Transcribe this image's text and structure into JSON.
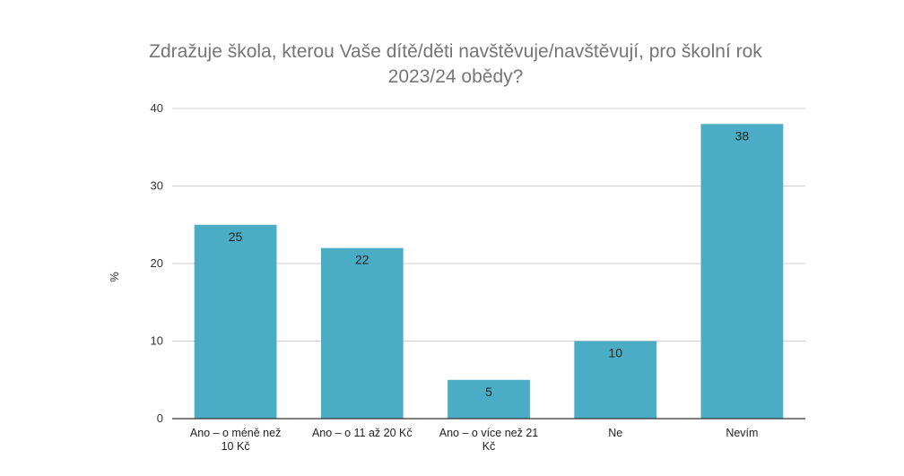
{
  "chart_data": {
    "type": "bar",
    "title_lines": [
      "Zdražuje škola, kterou Vaše dítě/děti navštěvuje/navštěvují, pro školní rok",
      "2023/24 obědy?"
    ],
    "ylabel": "%",
    "xlabel": "",
    "ylim": [
      0,
      40
    ],
    "yticks": [
      "0",
      "10",
      "20",
      "30",
      "40"
    ],
    "grid": true,
    "bar_color": "#4BACC6",
    "categories": [
      [
        "Ano – o méně než",
        "10 Kč"
      ],
      [
        "Ano – o 11 až 20 Kč"
      ],
      [
        "Ano – o více než 21",
        "Kč"
      ],
      [
        "Ne"
      ],
      [
        "Nevím"
      ]
    ],
    "values": [
      25,
      22,
      5,
      10,
      38
    ],
    "value_labels": [
      "25",
      "22",
      "5",
      "10",
      "38"
    ]
  }
}
